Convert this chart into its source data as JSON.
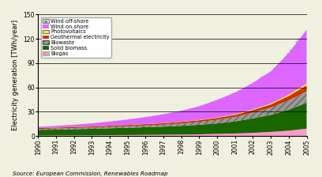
{
  "years": [
    1990,
    1991,
    1992,
    1993,
    1994,
    1995,
    1996,
    1997,
    1998,
    1999,
    2000,
    2001,
    2002,
    2003,
    2004,
    2005
  ],
  "biogas": [
    0.5,
    0.6,
    0.7,
    0.8,
    1.0,
    1.1,
    1.3,
    1.5,
    1.7,
    2.0,
    2.5,
    3.0,
    3.8,
    5.0,
    6.5,
    9.0
  ],
  "solid_biomass": [
    7.0,
    7.3,
    7.6,
    8.0,
    8.5,
    9.0,
    9.5,
    10.0,
    10.8,
    11.8,
    13.0,
    15.0,
    18.0,
    21.0,
    26.0,
    32.0
  ],
  "biowaste": [
    1.2,
    1.3,
    1.5,
    1.6,
    1.8,
    2.0,
    2.2,
    2.5,
    3.0,
    3.5,
    4.5,
    5.5,
    7.0,
    9.0,
    11.5,
    14.0
  ],
  "geothermal": [
    1.0,
    1.1,
    1.2,
    1.3,
    1.4,
    1.5,
    1.6,
    1.7,
    1.9,
    2.1,
    2.3,
    2.6,
    3.2,
    4.0,
    5.5,
    7.5
  ],
  "photovoltaics": [
    0.05,
    0.06,
    0.07,
    0.09,
    0.11,
    0.13,
    0.16,
    0.2,
    0.25,
    0.32,
    0.4,
    0.55,
    0.75,
    1.0,
    1.4,
    2.0
  ],
  "wind_onshore": [
    1.5,
    2.0,
    2.8,
    3.8,
    5.0,
    6.5,
    8.5,
    11.0,
    13.5,
    17.0,
    22.0,
    27.0,
    33.0,
    40.0,
    52.0,
    67.0
  ],
  "wind_offshore": [
    0.0,
    0.0,
    0.0,
    0.0,
    0.0,
    0.0,
    0.0,
    0.0,
    0.0,
    0.1,
    0.2,
    0.3,
    0.6,
    1.0,
    1.5,
    3.0
  ],
  "colors": {
    "biogas": "#ff99cc",
    "solid_biomass": "#1a6600",
    "biowaste": "#999999",
    "geothermal": "#cc3300",
    "photovoltaics": "#ffff00",
    "wind_onshore": "#dd66ff",
    "wind_offshore": "#eeeeee"
  },
  "ylabel": "Electricity generation [TWh/year]",
  "ylim": [
    0,
    150
  ],
  "yticks": [
    0,
    30,
    60,
    90,
    120,
    150
  ],
  "xlim_min": 1990,
  "xlim_max": 2005,
  "source_text": "Source: European Commission, Renewables Roadmap",
  "background_color": "#f0f0e0",
  "label_fontsize": 6.0,
  "tick_fontsize": 5.5
}
